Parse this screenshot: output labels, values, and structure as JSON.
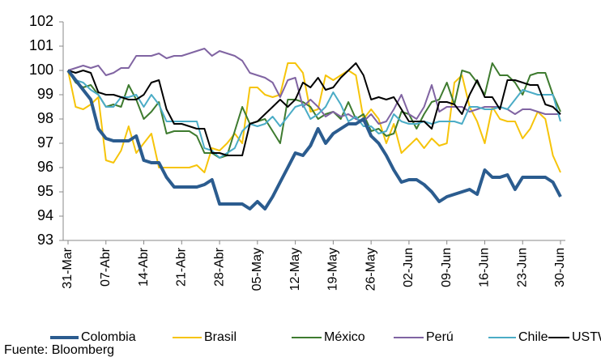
{
  "chart_data": {
    "type": "line",
    "source": "Fuente: Bloomberg",
    "categories": [
      "31-Mar",
      null,
      null,
      null,
      null,
      "07-Abr",
      null,
      null,
      null,
      null,
      "14-Abr",
      null,
      null,
      null,
      null,
      "21-Abr",
      null,
      null,
      null,
      null,
      "28-Abr",
      null,
      null,
      null,
      null,
      "05-May",
      null,
      null,
      null,
      null,
      "12-May",
      null,
      null,
      null,
      null,
      "19-May",
      null,
      null,
      null,
      null,
      "26-May",
      null,
      null,
      null,
      null,
      "02-Jun",
      null,
      null,
      null,
      null,
      "09-Jun",
      null,
      null,
      null,
      null,
      "16-Jun",
      null,
      null,
      null,
      null,
      "23-Jun",
      null,
      null,
      null,
      null,
      "30-Jun"
    ],
    "ylim": [
      93,
      102
    ],
    "yticks": [
      93,
      94,
      95,
      96,
      97,
      98,
      99,
      100,
      101,
      102
    ],
    "grid": false,
    "legend": "bottom",
    "series": [
      {
        "name": "Colombia",
        "color": "#2b5c8f",
        "values": [
          100,
          99.6,
          99.2,
          98.8,
          97.6,
          97.2,
          97.1,
          97.1,
          97.1,
          97.3,
          96.3,
          96.2,
          96.2,
          95.6,
          95.2,
          95.2,
          95.2,
          95.2,
          95.3,
          95.5,
          94.5,
          94.5,
          94.5,
          94.5,
          94.3,
          94.6,
          94.3,
          94.8,
          95.4,
          96.0,
          96.6,
          96.5,
          96.9,
          97.6,
          97.0,
          97.4,
          97.6,
          97.8,
          97.8,
          98.0,
          97.3,
          97.0,
          96.5,
          95.9,
          95.4,
          95.5,
          95.5,
          95.3,
          95.0,
          94.6,
          94.8,
          94.9,
          95.0,
          95.1,
          94.9,
          95.9,
          95.6,
          95.6,
          95.7,
          95.1,
          95.6,
          95.6,
          95.6,
          95.6,
          95.4,
          94.8
        ]
      },
      {
        "name": "Brasil",
        "color": "#f6c40a",
        "values": [
          100,
          98.5,
          98.4,
          98.6,
          98.9,
          96.3,
          96.2,
          96.7,
          97.7,
          96.6,
          97.0,
          97.4,
          96.0,
          96.0,
          96.0,
          96.0,
          96.0,
          96.1,
          95.8,
          96.8,
          96.7,
          97.0,
          97.4,
          97.0,
          99.3,
          99.3,
          99.0,
          98.9,
          99.0,
          100.3,
          100.3,
          99.9,
          98.3,
          98.4,
          99.8,
          99.6,
          99.8,
          100.0,
          99.8,
          98.0,
          98.4,
          98.0,
          97.0,
          97.8,
          96.6,
          96.9,
          97.2,
          96.8,
          97.2,
          96.9,
          97.0,
          99.5,
          99.8,
          98.5,
          97.9,
          97.0,
          98.5,
          98.0,
          97.9,
          97.9,
          97.2,
          97.6,
          98.3,
          98.0,
          96.5,
          95.8
        ]
      },
      {
        "name": "México",
        "color": "#3e7b2f",
        "values": [
          100,
          99.5,
          99.3,
          99.4,
          99.0,
          98.5,
          98.6,
          98.5,
          99.4,
          98.8,
          98.0,
          98.3,
          98.7,
          97.4,
          97.5,
          97.5,
          97.5,
          97.3,
          96.6,
          96.6,
          96.4,
          96.5,
          97.5,
          98.5,
          97.8,
          97.9,
          98.0,
          97.5,
          97.0,
          98.8,
          98.8,
          98.7,
          98.5,
          98.0,
          98.2,
          98.3,
          98.0,
          98.7,
          98.0,
          98.2,
          97.5,
          97.6,
          97.3,
          97.4,
          98.3,
          98.2,
          97.6,
          98.2,
          98.7,
          98.8,
          99.5,
          98.6,
          100.0,
          99.9,
          99.5,
          99.0,
          100.3,
          99.8,
          99.8,
          99.5,
          99.0,
          99.8,
          99.9,
          99.9,
          99.0,
          98.3
        ]
      },
      {
        "name": "Perú",
        "color": "#8064a2",
        "values": [
          100,
          100.1,
          100.2,
          100.1,
          100.2,
          99.8,
          99.9,
          100.1,
          100.1,
          100.6,
          100.6,
          100.6,
          100.7,
          100.5,
          100.6,
          100.6,
          100.7,
          100.8,
          100.9,
          100.6,
          100.8,
          100.7,
          100.6,
          100.4,
          99.9,
          99.8,
          99.7,
          99.5,
          98.9,
          99.6,
          99.7,
          98.5,
          98.8,
          98.5,
          98.1,
          98.3,
          98.1,
          98.2,
          98.0,
          97.9,
          98.2,
          97.8,
          97.9,
          98.4,
          99.0,
          98.2,
          98.0,
          98.5,
          99.4,
          98.3,
          98.5,
          98.5,
          98.5,
          98.3,
          98.4,
          98.5,
          98.5,
          98.5,
          98.4,
          98.2,
          98.4,
          98.4,
          98.3,
          98.2,
          98.2,
          98.2
        ]
      },
      {
        "name": "Chile",
        "color": "#4bacc6",
        "values": [
          100,
          99.6,
          99.5,
          99.2,
          99.0,
          98.5,
          98.5,
          98.9,
          98.9,
          99.0,
          98.5,
          99.0,
          98.6,
          97.9,
          97.9,
          97.9,
          97.9,
          97.9,
          96.8,
          96.7,
          96.4,
          96.6,
          96.8,
          97.5,
          97.8,
          97.7,
          97.8,
          98.1,
          97.7,
          98.1,
          98.5,
          98.6,
          98.0,
          98.2,
          98.5,
          99.1,
          98.6,
          97.9,
          98.1,
          97.7,
          97.7,
          97.4,
          97.5,
          98.2,
          97.9,
          97.8,
          97.8,
          97.9,
          97.8,
          97.9,
          97.9,
          97.9,
          97.8,
          98.5,
          98.5,
          98.4,
          98.4,
          98.5,
          98.4,
          98.8,
          99.2,
          99.1,
          99.0,
          99.0,
          99.0,
          97.9
        ]
      },
      {
        "name": "USTW",
        "color": "#000000",
        "values": [
          100,
          99.9,
          100.0,
          99.9,
          99.1,
          99.0,
          99.0,
          98.9,
          98.8,
          98.8,
          99.0,
          99.5,
          99.6,
          98.4,
          97.8,
          97.8,
          97.7,
          97.6,
          97.6,
          96.6,
          96.6,
          96.5,
          96.5,
          96.5,
          97.8,
          97.9,
          98.2,
          98.5,
          98.8,
          98.5,
          98.8,
          99.5,
          99.3,
          99.7,
          99.2,
          99.3,
          99.7,
          100.0,
          100.3,
          99.8,
          98.8,
          98.9,
          98.8,
          98.9,
          98.4,
          97.9,
          97.9,
          97.9,
          97.6,
          98.7,
          98.7,
          98.6,
          98.2,
          99.0,
          99.6,
          98.9,
          98.9,
          98.4,
          99.6,
          99.6,
          99.5,
          99.4,
          99.4,
          98.6,
          98.5,
          98.2
        ]
      }
    ]
  }
}
